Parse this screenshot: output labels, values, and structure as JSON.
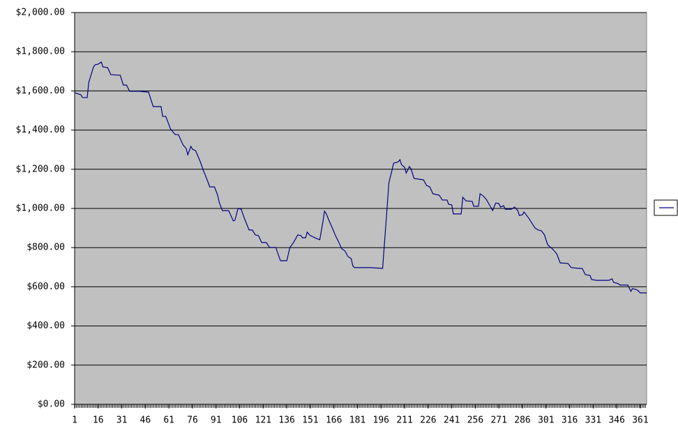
{
  "chart_data": {
    "type": "line",
    "x": [
      1,
      5,
      6,
      9,
      10,
      13,
      14,
      16,
      18,
      19,
      22,
      24,
      30,
      32,
      34,
      36,
      42,
      48,
      51,
      56,
      57,
      59,
      62,
      65,
      67,
      70,
      72,
      73,
      75,
      76,
      78,
      81,
      83,
      85,
      87,
      90,
      92,
      93,
      95,
      99,
      102,
      103,
      105,
      107,
      109,
      112,
      114,
      116,
      118,
      120,
      123,
      125,
      129,
      132,
      136,
      138,
      140,
      143,
      145,
      146,
      148,
      149,
      151,
      152,
      154,
      157,
      159,
      160,
      161,
      163,
      165,
      167,
      169,
      171,
      173,
      175,
      177,
      178,
      179,
      189,
      197,
      199,
      201,
      203,
      204,
      207,
      208,
      209,
      211,
      212,
      214,
      215,
      217,
      223,
      225,
      227,
      229,
      233,
      235,
      238,
      239,
      241,
      242,
      247,
      248,
      250,
      254,
      255,
      258,
      259,
      261,
      263,
      266,
      267,
      269,
      271,
      272,
      274,
      275,
      279,
      281,
      283,
      284,
      286,
      287,
      290,
      292,
      294,
      296,
      298,
      300,
      302,
      305,
      307,
      308,
      310,
      315,
      317,
      322,
      324,
      326,
      329,
      330,
      333,
      341,
      343,
      344,
      347,
      348,
      353,
      355,
      356,
      359,
      361,
      365
    ],
    "series": [
      {
        "color": "#000080",
        "values": [
          1591,
          1580,
          1566,
          1566,
          1644,
          1722,
          1733,
          1737,
          1747,
          1722,
          1719,
          1683,
          1680,
          1630,
          1630,
          1598,
          1598,
          1594,
          1520,
          1520,
          1470,
          1470,
          1406,
          1377,
          1377,
          1324,
          1306,
          1274,
          1317,
          1302,
          1295,
          1238,
          1192,
          1153,
          1110,
          1110,
          1068,
          1032,
          989,
          989,
          936,
          940,
          1000,
          996,
          950,
          890,
          890,
          865,
          861,
          826,
          826,
          801,
          801,
          733,
          733,
          801,
          822,
          865,
          861,
          850,
          850,
          879,
          861,
          858,
          850,
          840,
          932,
          986,
          975,
          936,
          900,
          861,
          829,
          794,
          783,
          754,
          744,
          708,
          698,
          698,
          694,
          911,
          1132,
          1196,
          1231,
          1238,
          1249,
          1224,
          1210,
          1181,
          1214,
          1203,
          1153,
          1146,
          1117,
          1110,
          1075,
          1068,
          1043,
          1043,
          1021,
          1018,
          972,
          972,
          1057,
          1039,
          1036,
          1011,
          1011,
          1075,
          1064,
          1046,
          1004,
          989,
          1028,
          1025,
          1007,
          1014,
          996,
          996,
          1007,
          989,
          964,
          968,
          982,
          950,
          925,
          900,
          890,
          886,
          865,
          815,
          794,
          776,
          765,
          722,
          719,
          698,
          694,
          694,
          662,
          658,
          637,
          633,
          633,
          641,
          623,
          616,
          609,
          609,
          577,
          591,
          584,
          569,
          569
        ]
      }
    ],
    "xlim": [
      1,
      365
    ],
    "xticks": [
      1,
      16,
      31,
      46,
      61,
      76,
      91,
      106,
      121,
      136,
      151,
      166,
      181,
      196,
      211,
      226,
      241,
      256,
      271,
      286,
      301,
      316,
      331,
      346,
      361
    ],
    "ylim": [
      0,
      2000
    ],
    "yticks": [
      {
        "value": 0,
        "label": "$0.00"
      },
      {
        "value": 200,
        "label": "$200.00"
      },
      {
        "value": 400,
        "label": "$400.00"
      },
      {
        "value": 600,
        "label": "$600.00"
      },
      {
        "value": 800,
        "label": "$800.00"
      },
      {
        "value": 1000,
        "label": "$1,000.00"
      },
      {
        "value": 1200,
        "label": "$1,200.00"
      },
      {
        "value": 1400,
        "label": "$1,400.00"
      },
      {
        "value": 1600,
        "label": "$1,600.00"
      },
      {
        "value": 1800,
        "label": "$1,800.00"
      },
      {
        "value": 2000,
        "label": "$2,000.00"
      }
    ],
    "grid": true,
    "legend": "right"
  }
}
